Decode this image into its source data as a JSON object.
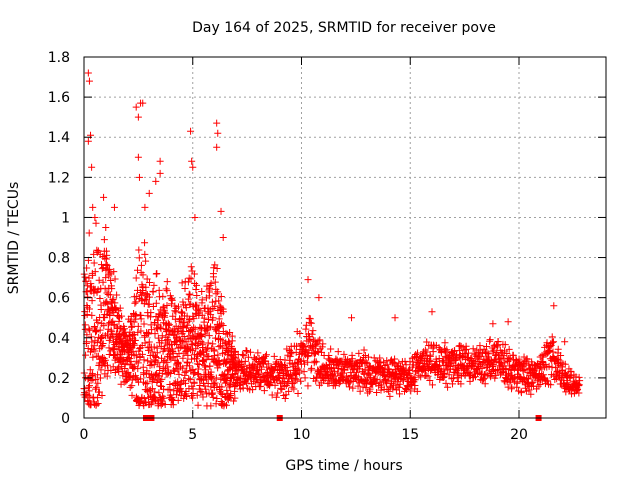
{
  "chart_data": {
    "type": "scatter",
    "title": "Day 164 of 2025, SRMTID for receiver pove",
    "xlabel": "GPS time / hours",
    "ylabel": "SRMTID / TECUs",
    "xlim": [
      0,
      24
    ],
    "ylim": [
      0,
      1.8
    ],
    "xticks": [
      0,
      5,
      10,
      15,
      20
    ],
    "xtick_labels": [
      "0",
      "5",
      "10",
      "15",
      "20"
    ],
    "yticks": [
      0,
      0.2,
      0.4,
      0.6,
      0.8,
      1,
      1.2,
      1.4,
      1.6,
      1.8
    ],
    "ytick_labels": [
      "0",
      "0.2",
      "0.4",
      "0.6",
      "0.8",
      "1",
      "1.2",
      "1.4",
      "1.6",
      "1.8"
    ],
    "grid": true,
    "series_color": "#ff0000",
    "marker": "plus",
    "x_end": 22.8,
    "gap_markers_x": [
      2.85,
      3.1,
      9.0,
      20.9
    ],
    "envelope": [
      {
        "x": 0.0,
        "base": 0.34,
        "spread": 0.55
      },
      {
        "x": 0.5,
        "base": 0.45,
        "spread": 0.65
      },
      {
        "x": 1.0,
        "base": 0.55,
        "spread": 0.45
      },
      {
        "x": 1.5,
        "base": 0.42,
        "spread": 0.25
      },
      {
        "x": 2.0,
        "base": 0.3,
        "spread": 0.15
      },
      {
        "x": 2.5,
        "base": 0.35,
        "spread": 0.6
      },
      {
        "x": 3.0,
        "base": 0.4,
        "spread": 0.55
      },
      {
        "x": 3.5,
        "base": 0.3,
        "spread": 0.45
      },
      {
        "x": 4.0,
        "base": 0.3,
        "spread": 0.4
      },
      {
        "x": 4.5,
        "base": 0.38,
        "spread": 0.35
      },
      {
        "x": 5.0,
        "base": 0.4,
        "spread": 0.45
      },
      {
        "x": 5.5,
        "base": 0.35,
        "spread": 0.3
      },
      {
        "x": 6.0,
        "base": 0.4,
        "spread": 0.5
      },
      {
        "x": 6.5,
        "base": 0.28,
        "spread": 0.3
      },
      {
        "x": 7.0,
        "base": 0.22,
        "spread": 0.12
      },
      {
        "x": 8.0,
        "base": 0.24,
        "spread": 0.12
      },
      {
        "x": 9.0,
        "base": 0.2,
        "spread": 0.12
      },
      {
        "x": 10.0,
        "base": 0.3,
        "spread": 0.18
      },
      {
        "x": 10.5,
        "base": 0.35,
        "spread": 0.18
      },
      {
        "x": 11.0,
        "base": 0.25,
        "spread": 0.12
      },
      {
        "x": 12.0,
        "base": 0.24,
        "spread": 0.1
      },
      {
        "x": 13.0,
        "base": 0.23,
        "spread": 0.12
      },
      {
        "x": 14.0,
        "base": 0.2,
        "spread": 0.1
      },
      {
        "x": 15.0,
        "base": 0.21,
        "spread": 0.1
      },
      {
        "x": 16.0,
        "base": 0.28,
        "spread": 0.14
      },
      {
        "x": 17.0,
        "base": 0.27,
        "spread": 0.12
      },
      {
        "x": 18.0,
        "base": 0.26,
        "spread": 0.12
      },
      {
        "x": 19.0,
        "base": 0.3,
        "spread": 0.12
      },
      {
        "x": 20.0,
        "base": 0.22,
        "spread": 0.12
      },
      {
        "x": 21.0,
        "base": 0.22,
        "spread": 0.1
      },
      {
        "x": 21.5,
        "base": 0.3,
        "spread": 0.18
      },
      {
        "x": 22.0,
        "base": 0.2,
        "spread": 0.1
      },
      {
        "x": 22.8,
        "base": 0.16,
        "spread": 0.05
      }
    ],
    "spikes": [
      {
        "x": 0.2,
        "y": 1.72
      },
      {
        "x": 0.25,
        "y": 1.68
      },
      {
        "x": 0.3,
        "y": 1.41
      },
      {
        "x": 0.2,
        "y": 1.38
      },
      {
        "x": 0.35,
        "y": 1.25
      },
      {
        "x": 0.4,
        "y": 1.05
      },
      {
        "x": 0.5,
        "y": 1.0
      },
      {
        "x": 0.9,
        "y": 1.1
      },
      {
        "x": 1.0,
        "y": 0.95
      },
      {
        "x": 1.4,
        "y": 1.05
      },
      {
        "x": 2.4,
        "y": 1.55
      },
      {
        "x": 2.5,
        "y": 1.5
      },
      {
        "x": 2.6,
        "y": 1.57
      },
      {
        "x": 2.7,
        "y": 1.57
      },
      {
        "x": 2.5,
        "y": 1.3
      },
      {
        "x": 2.55,
        "y": 1.2
      },
      {
        "x": 3.0,
        "y": 1.12
      },
      {
        "x": 3.3,
        "y": 1.18
      },
      {
        "x": 3.5,
        "y": 1.22
      },
      {
        "x": 3.5,
        "y": 1.28
      },
      {
        "x": 2.8,
        "y": 1.05
      },
      {
        "x": 4.9,
        "y": 1.43
      },
      {
        "x": 4.95,
        "y": 1.28
      },
      {
        "x": 5.0,
        "y": 1.25
      },
      {
        "x": 5.1,
        "y": 1.0
      },
      {
        "x": 6.1,
        "y": 1.47
      },
      {
        "x": 6.15,
        "y": 1.42
      },
      {
        "x": 6.1,
        "y": 1.35
      },
      {
        "x": 6.3,
        "y": 1.03
      },
      {
        "x": 6.4,
        "y": 0.9
      },
      {
        "x": 10.3,
        "y": 0.69
      },
      {
        "x": 10.8,
        "y": 0.6
      },
      {
        "x": 12.3,
        "y": 0.5
      },
      {
        "x": 14.3,
        "y": 0.5
      },
      {
        "x": 16.0,
        "y": 0.53
      },
      {
        "x": 18.8,
        "y": 0.47
      },
      {
        "x": 19.5,
        "y": 0.48
      },
      {
        "x": 21.6,
        "y": 0.56
      },
      {
        "x": 22.1,
        "y": 0.38
      }
    ]
  }
}
